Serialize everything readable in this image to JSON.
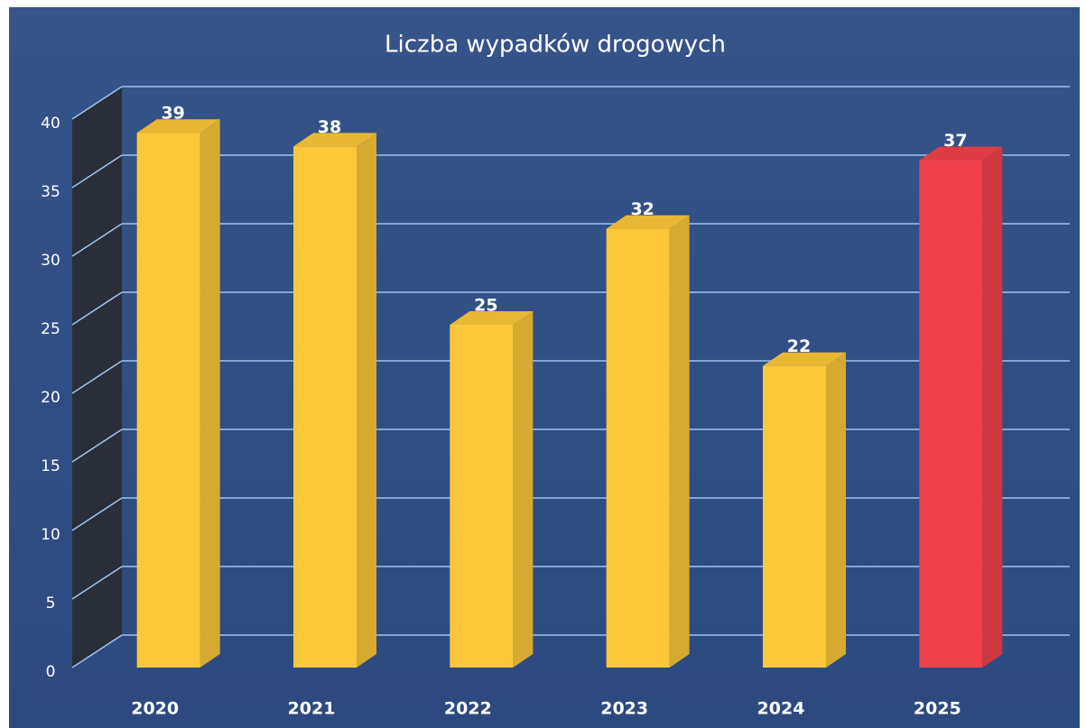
{
  "chart_data": {
    "type": "bar3d",
    "title": "Liczba wypadków drogowych",
    "categories": [
      "2020",
      "2021",
      "2022",
      "2023",
      "2024",
      "2025"
    ],
    "values": [
      39,
      38,
      25,
      32,
      22,
      37
    ],
    "colors": [
      "#fcc83a",
      "#fcc83a",
      "#fcc83a",
      "#fcc83a",
      "#fcc83a",
      "#f2414a"
    ],
    "ylim": [
      0,
      40
    ],
    "yticks": [
      0,
      5,
      10,
      15,
      20,
      25,
      30,
      35,
      40
    ],
    "grid": true
  }
}
